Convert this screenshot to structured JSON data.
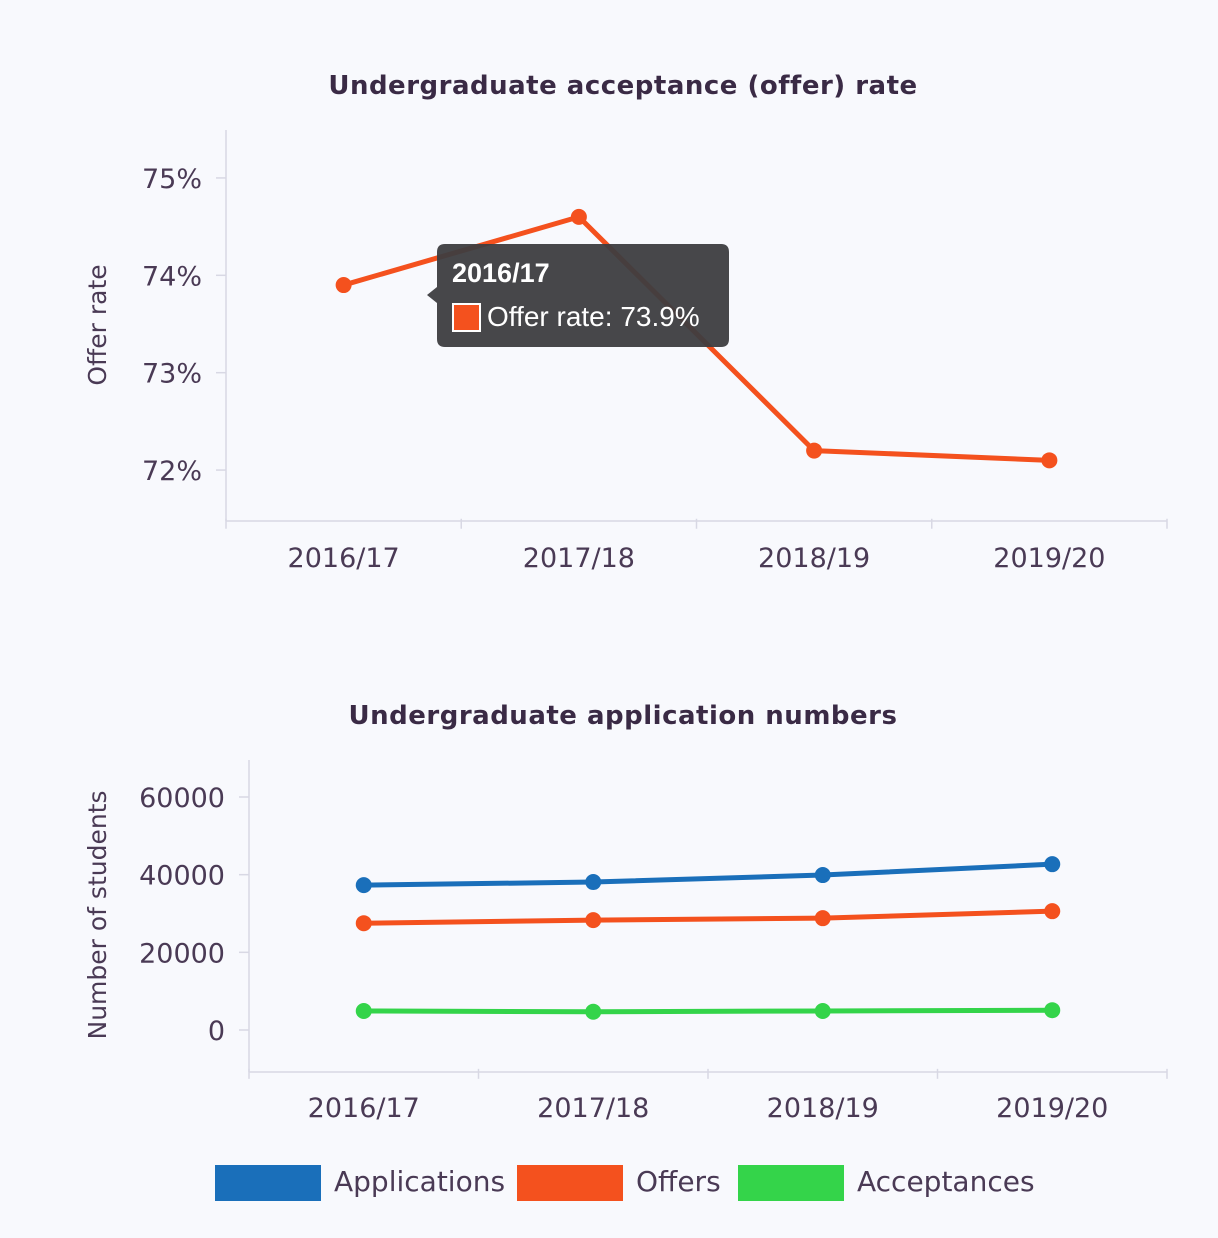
{
  "chart_data": [
    {
      "type": "line",
      "title": "Undergraduate acceptance (offer) rate",
      "xlabel": "",
      "ylabel": "Offer rate",
      "categories": [
        "2016/17",
        "2017/18",
        "2018/19",
        "2019/20"
      ],
      "yticks": [
        "72%",
        "73%",
        "74%",
        "75%"
      ],
      "ylim": [
        71.5,
        75.5
      ],
      "grid": false,
      "series": [
        {
          "name": "Offer rate",
          "color": "#f4511e",
          "values": [
            73.9,
            74.6,
            72.2,
            72.1
          ]
        }
      ],
      "tooltip": {
        "title": "2016/17",
        "label": "Offer rate: 73.9%",
        "color": "#f4511e"
      }
    },
    {
      "type": "line",
      "title": "Undergraduate application numbers",
      "xlabel": "",
      "ylabel": "Number of students",
      "categories": [
        "2016/17",
        "2017/18",
        "2018/19",
        "2019/20"
      ],
      "yticks": [
        "0",
        "20000",
        "40000",
        "60000"
      ],
      "ylim": [
        -10000,
        70000
      ],
      "grid": false,
      "legend": "bottom",
      "series": [
        {
          "name": "Applications",
          "color": "#1a6fba",
          "values": [
            37300,
            38100,
            39900,
            42700
          ]
        },
        {
          "name": "Offers",
          "color": "#f4511e",
          "values": [
            27500,
            28300,
            28800,
            30600
          ]
        },
        {
          "name": "Acceptances",
          "color": "#34d44a",
          "values": [
            4900,
            4700,
            4900,
            5100
          ]
        }
      ]
    }
  ]
}
